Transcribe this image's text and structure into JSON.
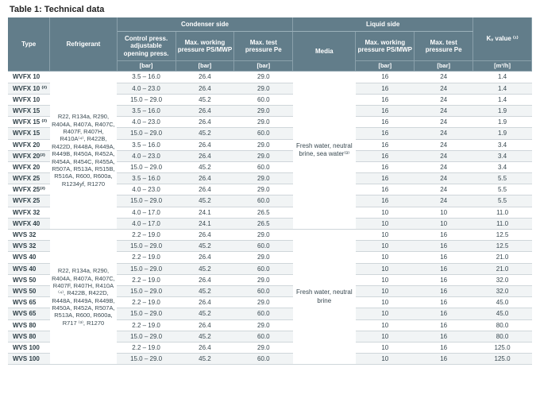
{
  "title": "Table 1: Technical data",
  "headers": {
    "type": "Type",
    "refrigerant": "Refrigerant",
    "condenser": "Condenser side",
    "liquid": "Liquid side",
    "kv": "Kᵥ value ⁽¹⁾",
    "ctrl": "Control press. adjustable opening press.",
    "mwp": "Max. working pressure PS/MWP",
    "pe": "Max. test pressure Pe",
    "media": "Media",
    "bar": "[bar]",
    "m3h": "[m³/h]"
  },
  "refrigGroups": [
    "R22, R134a, R290, R404A, R407A, R407C, R407F, R407H, R410A⁽⁴⁾, R422B, R422D, R448A, R449A, R449B, R450A, R452A, R454A, R454C, R455A, R507A, R513A, R515B, R516A, R600, R600a, R1234yf, R1270",
    "R22, R134a, R290, R404A, R407A, R407C, R407F, R407H, R410A ⁽⁴⁾, R422B, R422D, R448A, R449A, R449B, R450A, R452A, R507A, R513A, R600, R600a, R717 ⁽³⁾, R1270"
  ],
  "mediaGroups": [
    "Fresh water, neutral brine, sea water⁽³⁾",
    "Fresh water, neutral brine"
  ],
  "rows": [
    {
      "type": "WVFX 10",
      "ctrl": "3.5 – 16.0",
      "mwp1": "26.4",
      "pe1": "29.0",
      "mwp2": "16",
      "pe2": "24",
      "kv": "1.4"
    },
    {
      "type": "WVFX 10 ⁽²⁾",
      "ctrl": "4.0 – 23.0",
      "mwp1": "26.4",
      "pe1": "29.0",
      "mwp2": "16",
      "pe2": "24",
      "kv": "1.4"
    },
    {
      "type": "WVFX 10",
      "ctrl": "15.0 – 29.0",
      "mwp1": "45.2",
      "pe1": "60.0",
      "mwp2": "16",
      "pe2": "24",
      "kv": "1.4"
    },
    {
      "type": "WVFX 15",
      "ctrl": "3.5 – 16.0",
      "mwp1": "26.4",
      "pe1": "29.0",
      "mwp2": "16",
      "pe2": "24",
      "kv": "1.9"
    },
    {
      "type": "WVFX 15 ⁽²⁾",
      "ctrl": "4.0 – 23.0",
      "mwp1": "26.4",
      "pe1": "29.0",
      "mwp2": "16",
      "pe2": "24",
      "kv": "1.9"
    },
    {
      "type": "WVFX 15",
      "ctrl": "15.0 – 29.0",
      "mwp1": "45.2",
      "pe1": "60.0",
      "mwp2": "16",
      "pe2": "24",
      "kv": "1.9"
    },
    {
      "type": "WVFX 20",
      "ctrl": "3.5 – 16.0",
      "mwp1": "26.4",
      "pe1": "29.0",
      "mwp2": "16",
      "pe2": "24",
      "kv": "3.4"
    },
    {
      "type": "WVFX 20⁽²⁾",
      "ctrl": "4.0 – 23.0",
      "mwp1": "26.4",
      "pe1": "29.0",
      "mwp2": "16",
      "pe2": "24",
      "kv": "3.4"
    },
    {
      "type": "WVFX 20",
      "ctrl": "15.0 – 29.0",
      "mwp1": "45.2",
      "pe1": "60.0",
      "mwp2": "16",
      "pe2": "24",
      "kv": "3.4"
    },
    {
      "type": "WVFX 25",
      "ctrl": "3.5 – 16.0",
      "mwp1": "26.4",
      "pe1": "29.0",
      "mwp2": "16",
      "pe2": "24",
      "kv": "5.5"
    },
    {
      "type": "WVFX 25⁽²⁾",
      "ctrl": "4.0 – 23.0",
      "mwp1": "26.4",
      "pe1": "29.0",
      "mwp2": "16",
      "pe2": "24",
      "kv": "5.5"
    },
    {
      "type": "WVFX 25",
      "ctrl": "15.0 – 29.0",
      "mwp1": "45.2",
      "pe1": "60.0",
      "mwp2": "16",
      "pe2": "24",
      "kv": "5.5"
    },
    {
      "type": "WVFX 32",
      "ctrl": "4.0 – 17.0",
      "mwp1": "24.1",
      "pe1": "26.5",
      "mwp2": "10",
      "pe2": "10",
      "kv": "11.0"
    },
    {
      "type": "WVFX 40",
      "ctrl": "4.0 – 17.0",
      "mwp1": "24.1",
      "pe1": "26.5",
      "mwp2": "10",
      "pe2": "10",
      "kv": "11.0"
    },
    {
      "type": "WVS 32",
      "ctrl": "2.2 – 19.0",
      "mwp1": "26.4",
      "pe1": "29.0",
      "mwp2": "10",
      "pe2": "16",
      "kv": "12.5"
    },
    {
      "type": "WVS 32",
      "ctrl": "15.0 – 29.0",
      "mwp1": "45.2",
      "pe1": "60.0",
      "mwp2": "10",
      "pe2": "16",
      "kv": "12.5"
    },
    {
      "type": "WVS 40",
      "ctrl": "2.2 – 19.0",
      "mwp1": "26.4",
      "pe1": "29.0",
      "mwp2": "10",
      "pe2": "16",
      "kv": "21.0"
    },
    {
      "type": "WVS 40",
      "ctrl": "15.0 – 29.0",
      "mwp1": "45.2",
      "pe1": "60.0",
      "mwp2": "10",
      "pe2": "16",
      "kv": "21.0"
    },
    {
      "type": "WVS 50",
      "ctrl": "2.2 – 19.0",
      "mwp1": "26.4",
      "pe1": "29.0",
      "mwp2": "10",
      "pe2": "16",
      "kv": "32.0"
    },
    {
      "type": "WVS 50",
      "ctrl": "15.0 – 29.0",
      "mwp1": "45.2",
      "pe1": "60.0",
      "mwp2": "10",
      "pe2": "16",
      "kv": "32.0"
    },
    {
      "type": "WVS 65",
      "ctrl": "2.2 – 19.0",
      "mwp1": "26.4",
      "pe1": "29.0",
      "mwp2": "10",
      "pe2": "16",
      "kv": "45.0"
    },
    {
      "type": "WVS 65",
      "ctrl": "15.0 – 29.0",
      "mwp1": "45.2",
      "pe1": "60.0",
      "mwp2": "10",
      "pe2": "16",
      "kv": "45.0"
    },
    {
      "type": "WVS 80",
      "ctrl": "2.2 – 19.0",
      "mwp1": "26.4",
      "pe1": "29.0",
      "mwp2": "10",
      "pe2": "16",
      "kv": "80.0"
    },
    {
      "type": "WVS 80",
      "ctrl": "15.0 – 29.0",
      "mwp1": "45.2",
      "pe1": "60.0",
      "mwp2": "10",
      "pe2": "16",
      "kv": "80.0"
    },
    {
      "type": "WVS 100",
      "ctrl": "2.2 – 19.0",
      "mwp1": "26.4",
      "pe1": "29.0",
      "mwp2": "10",
      "pe2": "16",
      "kv": "125.0"
    },
    {
      "type": "WVS 100",
      "ctrl": "15.0 – 29.0",
      "mwp1": "45.2",
      "pe1": "60.0",
      "mwp2": "10",
      "pe2": "16",
      "kv": "125.0"
    }
  ],
  "layout": {
    "refrigSplitRow": 14,
    "mediaSplitRow": 14
  }
}
